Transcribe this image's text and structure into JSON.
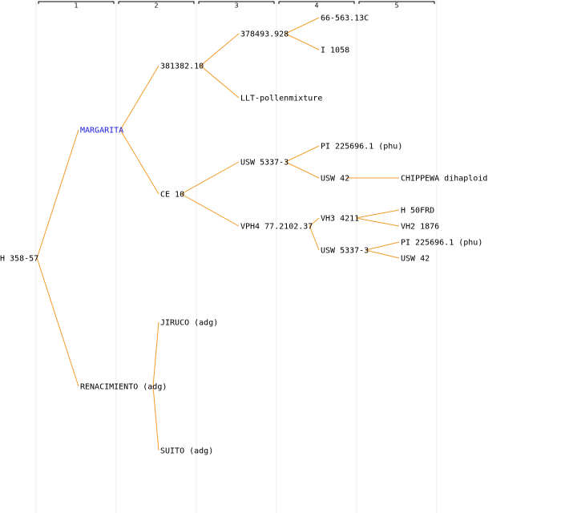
{
  "generations": [
    "1",
    "2",
    "3",
    "4",
    "5"
  ],
  "colors": {
    "edge": "#f39c2a",
    "highlight": "#1a1adc",
    "text": "#000000"
  },
  "nodes": [
    {
      "id": "n0",
      "label": "H 358-57",
      "gen": 0,
      "parent": null
    },
    {
      "id": "n1",
      "label": "MARGARITA",
      "gen": 1,
      "parent": "n0",
      "highlight": true
    },
    {
      "id": "n2",
      "label": "RENACIMIENTO (adg)",
      "gen": 1,
      "parent": "n0"
    },
    {
      "id": "n3",
      "label": "381382.10",
      "gen": 2,
      "parent": "n1"
    },
    {
      "id": "n4",
      "label": "CE 10",
      "gen": 2,
      "parent": "n1"
    },
    {
      "id": "n5",
      "label": "JIRUCO (adg)",
      "gen": 2,
      "parent": "n2"
    },
    {
      "id": "n6",
      "label": "SUITO (adg)",
      "gen": 2,
      "parent": "n2"
    },
    {
      "id": "n7",
      "label": "378493.928",
      "gen": 3,
      "parent": "n3"
    },
    {
      "id": "n8",
      "label": "LLT-pollenmixture",
      "gen": 3,
      "parent": "n3"
    },
    {
      "id": "n9",
      "label": "USW 5337-3",
      "gen": 3,
      "parent": "n4"
    },
    {
      "id": "n10",
      "label": "VPH4 77.2102.37",
      "gen": 3,
      "parent": "n4"
    },
    {
      "id": "n11",
      "label": "66-563.13C",
      "gen": 4,
      "parent": "n7"
    },
    {
      "id": "n12",
      "label": "I 1058",
      "gen": 4,
      "parent": "n7"
    },
    {
      "id": "n13",
      "label": "PI 225696.1 (phu)",
      "gen": 4,
      "parent": "n9"
    },
    {
      "id": "n14",
      "label": "USW 42",
      "gen": 4,
      "parent": "n9"
    },
    {
      "id": "n15",
      "label": "VH3 4211",
      "gen": 4,
      "parent": "n10"
    },
    {
      "id": "n16",
      "label": "USW 5337-3",
      "gen": 4,
      "parent": "n10"
    },
    {
      "id": "n17",
      "label": "CHIPPEWA dihaploid",
      "gen": 5,
      "parent": "n14"
    },
    {
      "id": "n18",
      "label": "H 50FRD",
      "gen": 5,
      "parent": "n15"
    },
    {
      "id": "n19",
      "label": "VH2 1876",
      "gen": 5,
      "parent": "n15"
    },
    {
      "id": "n20",
      "label": "PI 225696.1 (phu)",
      "gen": 5,
      "parent": "n16"
    },
    {
      "id": "n21",
      "label": "USW 42",
      "gen": 5,
      "parent": "n16"
    }
  ]
}
